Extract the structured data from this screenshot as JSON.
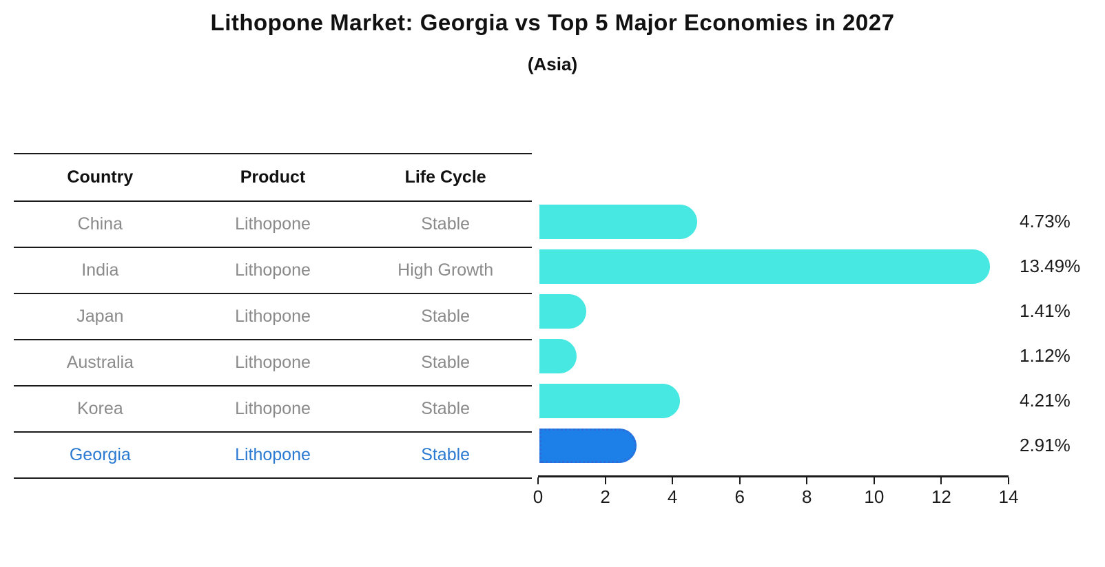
{
  "title": "Lithopone Market: Georgia vs Top 5 Major Economies in 2027",
  "subtitle": "(Asia)",
  "table": {
    "headers": {
      "country": "Country",
      "product": "Product",
      "life_cycle": "Life Cycle"
    },
    "rows": [
      {
        "country": "China",
        "product": "Lithopone",
        "life_cycle": "Stable",
        "highlight": false
      },
      {
        "country": "India",
        "product": "Lithopone",
        "life_cycle": "High Growth",
        "highlight": false
      },
      {
        "country": "Japan",
        "product": "Lithopone",
        "life_cycle": "Stable",
        "highlight": false
      },
      {
        "country": "Australia",
        "product": "Lithopone",
        "life_cycle": "Stable",
        "highlight": false
      },
      {
        "country": "Korea",
        "product": "Lithopone",
        "life_cycle": "Stable",
        "highlight": false
      },
      {
        "country": "Georgia",
        "product": "Lithopone",
        "life_cycle": "Stable",
        "highlight": true
      }
    ]
  },
  "chart_data": {
    "type": "bar",
    "orientation": "horizontal",
    "title": "Lithopone Market: Georgia vs Top 5 Major Economies in 2027 (Asia)",
    "categories": [
      "China",
      "India",
      "Japan",
      "Australia",
      "Korea",
      "Georgia"
    ],
    "values": [
      4.73,
      13.49,
      1.41,
      1.12,
      4.21,
      2.91
    ],
    "value_labels": [
      "4.73%",
      "13.49%",
      "1.41%",
      "1.12%",
      "4.21%",
      "2.91%"
    ],
    "x_ticks": [
      "0",
      "2",
      "4",
      "6",
      "8",
      "10",
      "12",
      "14"
    ],
    "x_tick_values": [
      0,
      2,
      4,
      6,
      8,
      10,
      12,
      14
    ],
    "xlim": [
      0,
      14
    ],
    "grid": false,
    "legend": false,
    "highlight_index": 5
  },
  "colors": {
    "bar": "#48e8e2",
    "highlight_bar": "#1d80e8",
    "highlight_bar_border": "#2f6bd8",
    "highlight_text": "#2b7ad2",
    "row_text": "#8a8a8a",
    "axis": "#1a1a1a"
  }
}
